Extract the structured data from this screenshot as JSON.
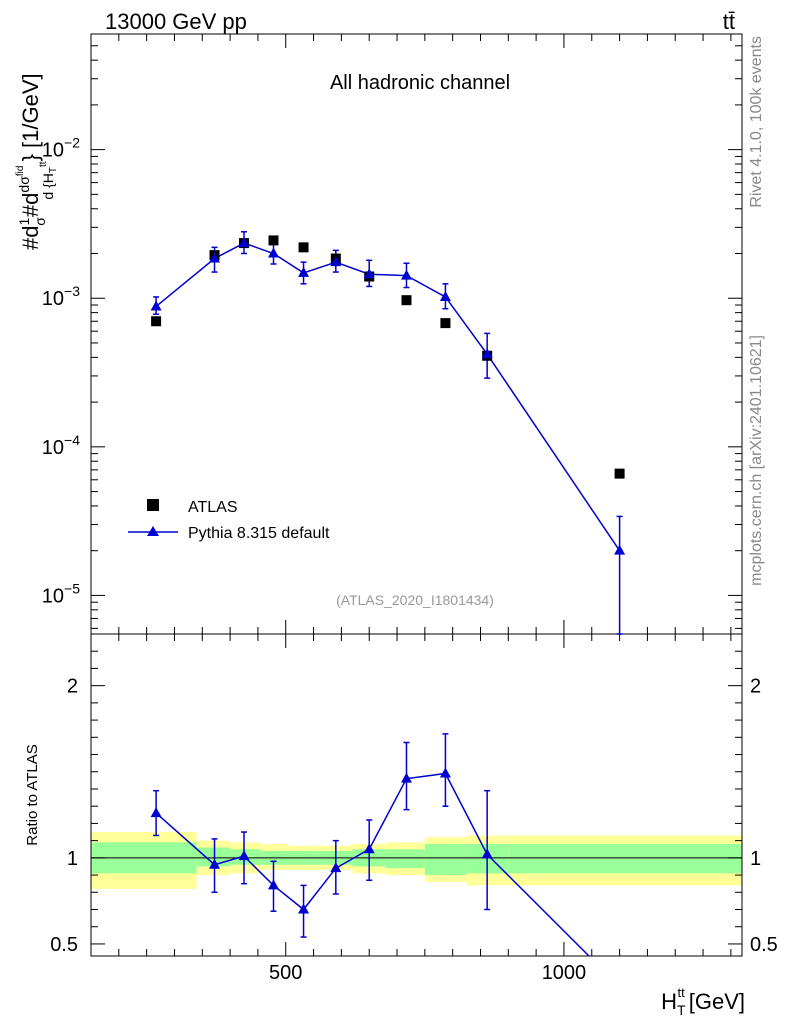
{
  "chart_data": {
    "type": "line",
    "header_left": "13000 GeV pp",
    "header_right": "tt̄",
    "title": "All hadronic channel",
    "analysis_tag": "(ATLAS_2020_I1801434)",
    "side_label_top": "Rivet 4.1.0,  100k events",
    "side_label_bottom": "mcplots.cern.ch [arXiv:2401.10621]",
    "ylabel": "#d 1/σ #d dσ^fid / d{H_T^tt} [1/GeV]",
    "ylabel_parts": {
      "a": "#d",
      "b": "1",
      "c": "σ",
      "d": "#d",
      "e": "dσ",
      "f": "fid",
      "g": "d {H",
      "h": "T",
      "i": "tt",
      "j": "} [1/GeV]"
    },
    "xlabel": {
      "main": "H",
      "sub": "T",
      "sup": "tt",
      "unit": "[GeV]"
    },
    "ratio_ylabel": "Ratio to ATLAS",
    "xlim": [
      150,
      1320
    ],
    "ylim_main": [
      5.5e-06,
      0.06
    ],
    "ylim_ratio": [
      0.43,
      2.3
    ],
    "x_ticks": [
      500,
      1000
    ],
    "x_tick_labels": [
      "500",
      "1000"
    ],
    "main_y_ticks": [
      {
        "mantissa": "10",
        "exp": "−5",
        "value": 1e-05
      },
      {
        "mantissa": "10",
        "exp": "−4",
        "value": 0.0001
      },
      {
        "mantissa": "10",
        "exp": "−3",
        "value": 0.001
      },
      {
        "mantissa": "10",
        "exp": "−2",
        "value": 0.01
      }
    ],
    "ratio_y_ticks": [
      {
        "value": 0.5,
        "label": "0.5"
      },
      {
        "value": 1,
        "label": "1"
      },
      {
        "value": 2,
        "label": "2"
      }
    ],
    "legend": [
      {
        "name": "ATLAS",
        "marker": "square",
        "color": "#000000"
      },
      {
        "name": "Pythia 8.315 default",
        "marker": "triangle",
        "color": "#0000d0"
      }
    ],
    "series": [
      {
        "name": "ATLAS",
        "x": [
          267,
          372,
          425,
          478,
          532,
          590,
          650,
          717,
          787,
          862,
          1100
        ],
        "y": [
          0.0007,
          0.00195,
          0.00235,
          0.00245,
          0.0022,
          0.00185,
          0.0014,
          0.00097,
          0.00068,
          0.00041,
          6.6e-05
        ]
      },
      {
        "name": "Pythia 8.315 default",
        "x": [
          267,
          372,
          425,
          478,
          532,
          590,
          650,
          717,
          787,
          862,
          1100
        ],
        "y": [
          0.00088,
          0.00185,
          0.00235,
          0.002,
          0.00148,
          0.00175,
          0.00145,
          0.00142,
          0.00102,
          0.00042,
          2e-05
        ],
        "y_low": [
          0.00078,
          0.0015,
          0.002,
          0.0017,
          0.00125,
          0.0015,
          0.0012,
          0.00118,
          0.00085,
          0.00029,
          5.5e-06
        ],
        "y_high": [
          0.00102,
          0.0022,
          0.0028,
          0.00235,
          0.00175,
          0.0021,
          0.0018,
          0.00172,
          0.00125,
          0.00058,
          3.4e-05
        ]
      }
    ],
    "ratio": {
      "x": [
        267,
        372,
        425,
        478,
        532,
        590,
        650,
        717,
        787,
        862
      ],
      "y": [
        1.26,
        0.96,
        1.01,
        0.84,
        0.7,
        0.94,
        1.05,
        1.46,
        1.49,
        1.02
      ],
      "y_low": [
        1.13,
        0.8,
        0.85,
        0.69,
        0.54,
        0.79,
        0.87,
        1.28,
        1.3,
        0.7
      ],
      "y_high": [
        1.39,
        1.11,
        1.15,
        0.98,
        0.84,
        1.1,
        1.22,
        1.67,
        1.72,
        1.39
      ],
      "line_end": {
        "x": 1045,
        "y": 0.43
      }
    },
    "bands": {
      "edges": [
        150,
        340,
        400,
        455,
        505,
        560,
        620,
        680,
        750,
        825,
        900,
        1320
      ],
      "inner_low": [
        0.91,
        0.95,
        0.96,
        0.96,
        0.96,
        0.96,
        0.95,
        0.94,
        0.9,
        0.91,
        0.91
      ],
      "inner_high": [
        1.09,
        1.06,
        1.05,
        1.04,
        1.04,
        1.04,
        1.05,
        1.05,
        1.08,
        1.08,
        1.08
      ],
      "outer_low": [
        0.82,
        0.9,
        0.91,
        0.93,
        0.93,
        0.93,
        0.91,
        0.9,
        0.86,
        0.84,
        0.84
      ],
      "outer_high": [
        1.15,
        1.1,
        1.09,
        1.08,
        1.07,
        1.07,
        1.08,
        1.09,
        1.12,
        1.13,
        1.13
      ],
      "inner_color": "#99ff99",
      "outer_color": "#ffff99"
    },
    "colors": {
      "data": "#000000",
      "mc": "#0000d0",
      "grey_text": "#999999",
      "side_text": "#888888"
    }
  }
}
